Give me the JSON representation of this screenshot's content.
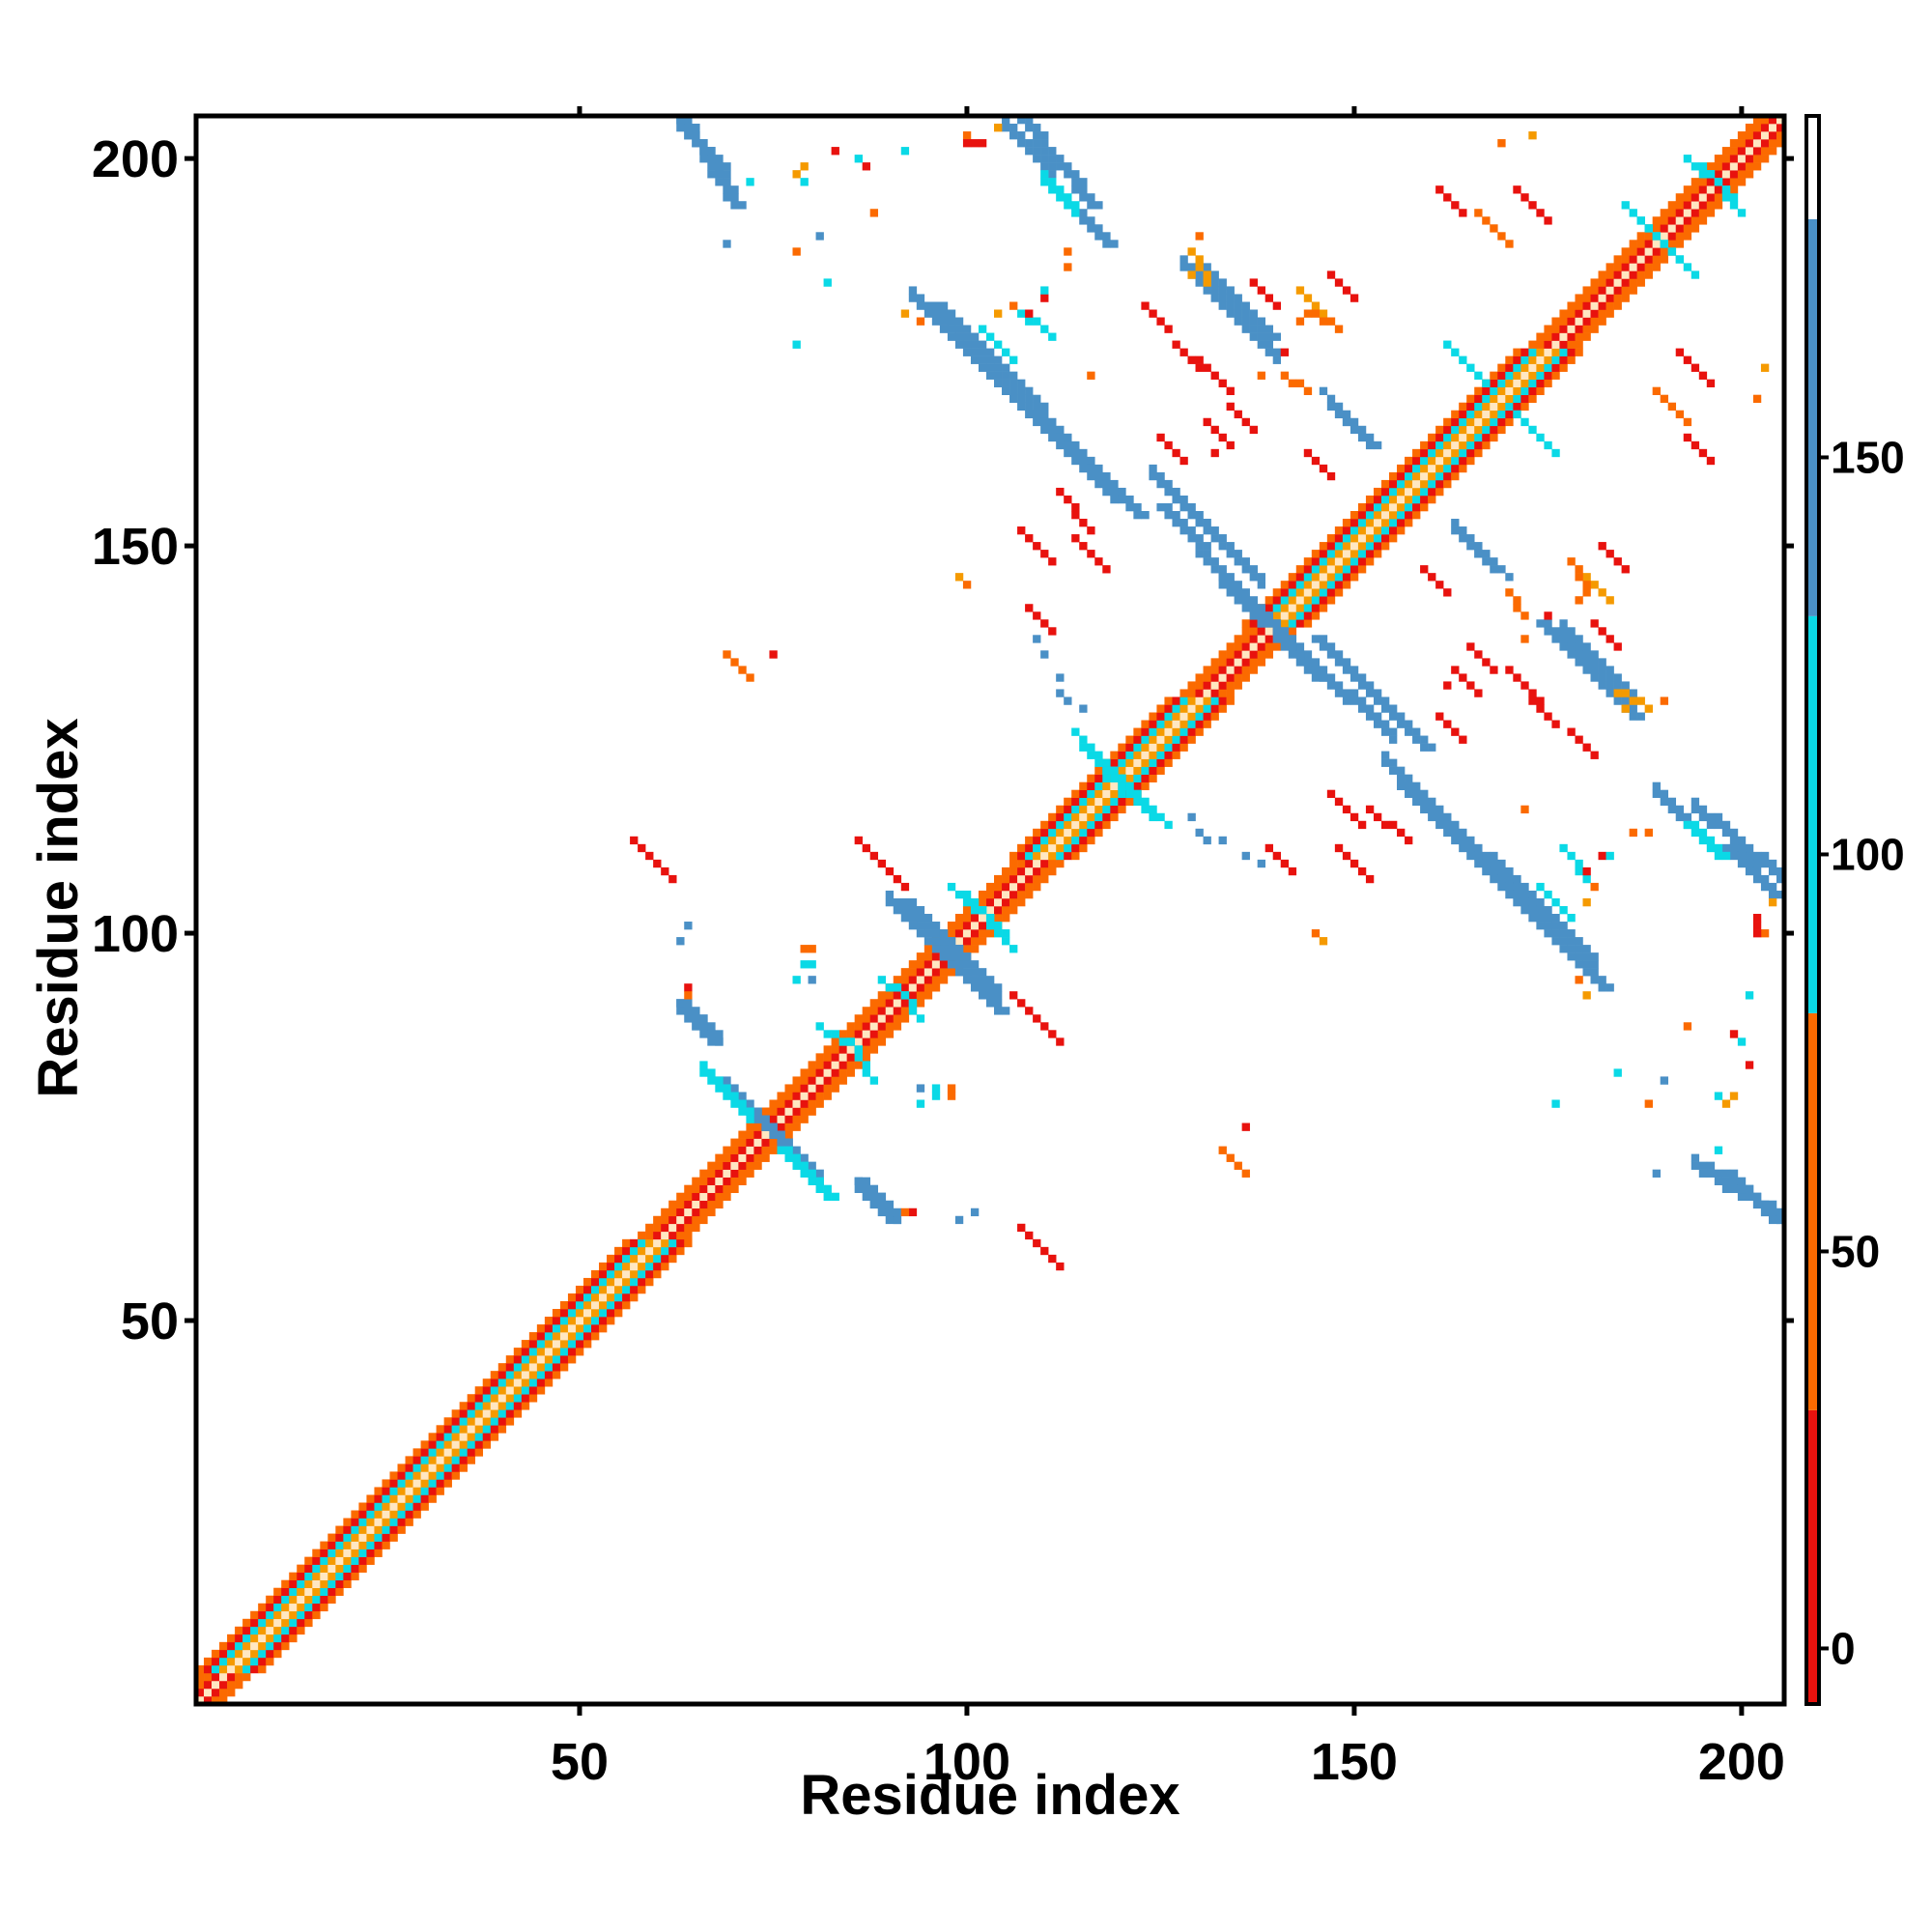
{
  "chart_data": {
    "type": "heatmap",
    "title": "",
    "xlabel": "Residue index",
    "ylabel": "Residue index",
    "xlim": [
      1,
      205
    ],
    "ylim": [
      1,
      205
    ],
    "x_ticks": [
      50,
      100,
      150,
      200
    ],
    "y_ticks": [
      50,
      100,
      150,
      200
    ],
    "grid": false,
    "legend": "colorbar-right",
    "colorbar": {
      "range": [
        -7,
        193
      ],
      "ticks": [
        0,
        50,
        100,
        150
      ],
      "bands": [
        {
          "from": -7,
          "to": 30,
          "color": "#e8120e"
        },
        {
          "from": 30,
          "to": 80,
          "color": "#fb6a00"
        },
        {
          "from": 80,
          "to": 130,
          "color": "#0ad9e6"
        },
        {
          "from": 130,
          "to": 180,
          "color": "#4a90c6"
        },
        {
          "from": 180,
          "to": 193,
          "color": "#ffffff"
        }
      ]
    },
    "diagonal_band": {
      "range": [
        1,
        205
      ],
      "colors_by_offset": {
        "0": "#ffe7c2",
        "1": "#e8120e",
        "2": "#fb6a00",
        "3": "#fb6a00",
        "4": "#f59a00"
      },
      "helix_segments": [
        [
          5,
          50
        ],
        [
          50,
          60
        ],
        [
          110,
          130
        ],
        [
          140,
          175
        ]
      ],
      "helix_colors": {
        "1": "#f59a00",
        "2": "#0ad9e6",
        "3": "#e8120e",
        "4": "#fb6a00"
      }
    },
    "contact_segments": [
      {
        "x1": 63,
        "y1": 205,
        "x2": 70,
        "y2": 194,
        "width": 2,
        "color": "#4a90c6"
      },
      {
        "x1": 107,
        "y1": 205,
        "x2": 116,
        "y2": 194,
        "width": 2,
        "color": "#4a90c6"
      },
      {
        "x1": 96,
        "y1": 181,
        "x2": 122,
        "y2": 154,
        "width": 2,
        "color": "#4a90c6"
      },
      {
        "x1": 125,
        "y1": 155,
        "x2": 145,
        "y2": 133,
        "width": 2,
        "color": "#4a90c6"
      },
      {
        "x1": 145,
        "y1": 138,
        "x2": 159,
        "y2": 124,
        "width": 2,
        "color": "#4a90c6"
      },
      {
        "x1": 156,
        "y1": 119,
        "x2": 182,
        "y2": 93,
        "width": 2,
        "color": "#4a90c6"
      },
      {
        "x1": 130,
        "y1": 186,
        "x2": 139,
        "y2": 177,
        "width": 2,
        "color": "#4a90c6"
      },
      {
        "x1": 174,
        "y1": 140,
        "x2": 186,
        "y2": 128,
        "width": 2,
        "color": "#4a90c6"
      },
      {
        "x1": 147,
        "y1": 168,
        "x2": 153,
        "y2": 163,
        "width": 1,
        "color": "#4a90c6"
      },
      {
        "x1": 163,
        "y1": 152,
        "x2": 170,
        "y2": 146,
        "width": 1,
        "color": "#4a90c6"
      },
      {
        "x1": 198,
        "y1": 111,
        "x2": 204,
        "y2": 105,
        "width": 2,
        "color": "#4a90c6"
      },
      {
        "x1": 198,
        "y1": 69,
        "x2": 204,
        "y2": 63,
        "width": 2,
        "color": "#4a90c6"
      },
      {
        "x1": 68,
        "y1": 81,
        "x2": 76,
        "y2": 73,
        "width": 2,
        "color": "#4a90c6"
      },
      {
        "x1": 76,
        "y1": 72,
        "x2": 82,
        "y2": 66,
        "width": 2,
        "color": "#0ad9e6"
      },
      {
        "x1": 86,
        "y1": 68,
        "x2": 90,
        "y2": 63,
        "width": 2,
        "color": "#4a90c6"
      },
      {
        "x1": 92,
        "y1": 104,
        "x2": 99,
        "y2": 97,
        "width": 2,
        "color": "#4a90c6"
      },
      {
        "x1": 97,
        "y1": 97,
        "x2": 104,
        "y2": 90,
        "width": 2,
        "color": "#4a90c6"
      },
      {
        "x1": 63,
        "y1": 91,
        "x2": 67,
        "y2": 86,
        "width": 2,
        "color": "#4a90c6"
      },
      {
        "x1": 114,
        "y1": 193,
        "x2": 118,
        "y2": 189,
        "width": 2,
        "color": "#4a90c6"
      },
      {
        "x1": 193,
        "y1": 114,
        "x2": 197,
        "y2": 110,
        "width": 2,
        "color": "#0ad9e6"
      },
      {
        "x1": 98,
        "y1": 106,
        "x2": 105,
        "y2": 100,
        "width": 1,
        "color": "#0ad9e6"
      },
      {
        "x1": 102,
        "y1": 178,
        "x2": 106,
        "y2": 174,
        "width": 1,
        "color": "#0ad9e6"
      },
      {
        "x1": 119,
        "y1": 121,
        "x2": 126,
        "y2": 114,
        "width": 1,
        "color": "#0ad9e6"
      },
      {
        "x1": 187,
        "y1": 192,
        "x2": 194,
        "y2": 185,
        "width": 1,
        "color": "#0ad9e6"
      },
      {
        "x1": 195,
        "y1": 199,
        "x2": 200,
        "y2": 193,
        "width": 1,
        "color": "#0ad9e6"
      },
      {
        "x1": 115,
        "y1": 124,
        "x2": 121,
        "y2": 118,
        "width": 1,
        "color": "#0ad9e6"
      },
      {
        "x1": 85,
        "y1": 86,
        "x2": 88,
        "y2": 81,
        "width": 1,
        "color": "#0ad9e6"
      },
      {
        "x1": 91,
        "y1": 93,
        "x2": 94,
        "y2": 89,
        "width": 1,
        "color": "#0ad9e6"
      },
      {
        "x1": 177,
        "y1": 111,
        "x2": 180,
        "y2": 107,
        "width": 1,
        "color": "#0ad9e6"
      },
      {
        "x1": 171,
        "y1": 167,
        "x2": 176,
        "y2": 162,
        "width": 1,
        "color": "#0ad9e6"
      },
      {
        "x1": 86,
        "y1": 112,
        "x2": 92,
        "y2": 106,
        "width": 1,
        "color": "#e8120e"
      },
      {
        "x1": 107,
        "y1": 62,
        "x2": 112,
        "y2": 57,
        "width": 1,
        "color": "#e8120e"
      },
      {
        "x1": 114,
        "y1": 151,
        "x2": 118,
        "y2": 147,
        "width": 1,
        "color": "#e8120e"
      },
      {
        "x1": 108,
        "y1": 142,
        "x2": 111,
        "y2": 139,
        "width": 1,
        "color": "#e8120e"
      },
      {
        "x1": 147,
        "y1": 185,
        "x2": 150,
        "y2": 182,
        "width": 1,
        "color": "#e8120e"
      },
      {
        "x1": 171,
        "y1": 196,
        "x2": 175,
        "y2": 192,
        "width": 1,
        "color": "#e8120e"
      },
      {
        "x1": 193,
        "y1": 164,
        "x2": 196,
        "y2": 161,
        "width": 1,
        "color": "#e8120e"
      },
      {
        "x1": 170,
        "y1": 134,
        "x2": 174,
        "y2": 130,
        "width": 1,
        "color": "#e8120e"
      },
      {
        "x1": 148,
        "y1": 111,
        "x2": 152,
        "y2": 107,
        "width": 1,
        "color": "#e8120e"
      },
      {
        "x1": 152,
        "y1": 116,
        "x2": 157,
        "y2": 112,
        "width": 1,
        "color": "#e8120e"
      },
      {
        "x1": 161,
        "y1": 128,
        "x2": 164,
        "y2": 125,
        "width": 1,
        "color": "#e8120e"
      },
      {
        "x1": 159,
        "y1": 147,
        "x2": 162,
        "y2": 144,
        "width": 1,
        "color": "#e8120e"
      },
      {
        "x1": 131,
        "y1": 166,
        "x2": 134,
        "y2": 163,
        "width": 1,
        "color": "#e8120e"
      },
      {
        "x1": 166,
        "y1": 193,
        "x2": 170,
        "y2": 189,
        "width": 1,
        "color": "#fb6a00"
      },
      {
        "x1": 180,
        "y1": 146,
        "x2": 183,
        "y2": 143,
        "width": 1,
        "color": "#f59a00"
      },
      {
        "x1": 181,
        "y1": 140,
        "x2": 184,
        "y2": 137,
        "width": 1,
        "color": "#e8120e"
      },
      {
        "x1": 69,
        "y1": 136,
        "x2": 72,
        "y2": 133,
        "width": 1,
        "color": "#fb6a00"
      },
      {
        "x1": 144,
        "y1": 180,
        "x2": 148,
        "y2": 178,
        "width": 1,
        "color": "#fb6a00"
      },
      {
        "x1": 123,
        "y1": 181,
        "x2": 126,
        "y2": 178,
        "width": 1,
        "color": "#e8120e"
      },
      {
        "x1": 127,
        "y1": 176,
        "x2": 130,
        "y2": 173,
        "width": 1,
        "color": "#e8120e"
      },
      {
        "x1": 141,
        "y1": 172,
        "x2": 144,
        "y2": 170,
        "width": 1,
        "color": "#fb6a00"
      },
      {
        "x1": 165,
        "y1": 137,
        "x2": 168,
        "y2": 134,
        "width": 1,
        "color": "#e8120e"
      },
      {
        "x1": 184,
        "y1": 131,
        "x2": 188,
        "y2": 129,
        "width": 1,
        "color": "#f59a00"
      }
    ],
    "contact_dots": [
      {
        "x": 78,
        "y": 198,
        "color": "#f59a00"
      },
      {
        "x": 79,
        "y": 197,
        "color": "#0ad9e6"
      },
      {
        "x": 87,
        "y": 199,
        "color": "#e8120e"
      },
      {
        "x": 92,
        "y": 201,
        "color": "#0ad9e6"
      },
      {
        "x": 100,
        "y": 203,
        "color": "#fb6a00"
      },
      {
        "x": 101,
        "y": 202,
        "color": "#e8120e"
      },
      {
        "x": 104,
        "y": 204,
        "color": "#f59a00"
      },
      {
        "x": 82,
        "y": 184,
        "color": "#0ad9e6"
      },
      {
        "x": 69,
        "y": 189,
        "color": "#4a90c6"
      },
      {
        "x": 92,
        "y": 180,
        "color": "#f59a00"
      },
      {
        "x": 94,
        "y": 179,
        "color": "#fb6a00"
      },
      {
        "x": 110,
        "y": 182,
        "color": "#e8120e"
      },
      {
        "x": 108,
        "y": 180,
        "color": "#e8120e"
      },
      {
        "x": 130,
        "y": 190,
        "color": "#fb6a00"
      },
      {
        "x": 141,
        "y": 175,
        "color": "#e8120e"
      },
      {
        "x": 138,
        "y": 172,
        "color": "#fb6a00"
      },
      {
        "x": 132,
        "y": 162,
        "color": "#e8120e"
      },
      {
        "x": 116,
        "y": 172,
        "color": "#fb6a00"
      },
      {
        "x": 113,
        "y": 186,
        "color": "#fb6a00"
      },
      {
        "x": 173,
        "y": 203,
        "color": "#f59a00"
      },
      {
        "x": 202,
        "y": 169,
        "color": "#fb6a00"
      },
      {
        "x": 179,
        "y": 143,
        "color": "#fb6a00"
      },
      {
        "x": 75,
        "y": 136,
        "color": "#e8120e"
      },
      {
        "x": 112,
        "y": 131,
        "color": "#4a90c6"
      },
      {
        "x": 113,
        "y": 130,
        "color": "#4a90c6"
      },
      {
        "x": 115,
        "y": 129,
        "color": "#4a90c6"
      },
      {
        "x": 185,
        "y": 129,
        "color": "#f59a00"
      },
      {
        "x": 133,
        "y": 112,
        "color": "#4a90c6"
      },
      {
        "x": 136,
        "y": 110,
        "color": "#4a90c6"
      },
      {
        "x": 138,
        "y": 109,
        "color": "#4a90c6"
      },
      {
        "x": 188,
        "y": 113,
        "color": "#fb6a00"
      },
      {
        "x": 183,
        "y": 110,
        "color": "#0ad9e6"
      },
      {
        "x": 181,
        "y": 106,
        "color": "#fb6a00"
      },
      {
        "x": 180,
        "y": 104,
        "color": "#f59a00"
      },
      {
        "x": 202,
        "y": 102,
        "color": "#e8120e"
      },
      {
        "x": 202,
        "y": 100,
        "color": "#e8120e"
      },
      {
        "x": 190,
        "y": 81,
        "color": "#4a90c6"
      },
      {
        "x": 193,
        "y": 88,
        "color": "#fb6a00"
      },
      {
        "x": 200,
        "y": 86,
        "color": "#0ad9e6"
      },
      {
        "x": 201,
        "y": 83,
        "color": "#e8120e"
      },
      {
        "x": 199,
        "y": 79,
        "color": "#f59a00"
      },
      {
        "x": 197,
        "y": 72,
        "color": "#0ad9e6"
      },
      {
        "x": 176,
        "y": 78,
        "color": "#0ad9e6"
      },
      {
        "x": 145,
        "y": 100,
        "color": "#fb6a00"
      },
      {
        "x": 146,
        "y": 99,
        "color": "#f59a00"
      },
      {
        "x": 79,
        "y": 98,
        "color": "#fb6a00"
      },
      {
        "x": 79,
        "y": 96,
        "color": "#0ad9e6"
      },
      {
        "x": 78,
        "y": 94,
        "color": "#0ad9e6"
      },
      {
        "x": 64,
        "y": 93,
        "color": "#e8120e"
      },
      {
        "x": 63,
        "y": 99,
        "color": "#4a90c6"
      },
      {
        "x": 94,
        "y": 80,
        "color": "#4a90c6"
      },
      {
        "x": 96,
        "y": 80,
        "color": "#0ad9e6"
      },
      {
        "x": 98,
        "y": 80,
        "color": "#fb6a00"
      },
      {
        "x": 101,
        "y": 64,
        "color": "#4a90c6"
      },
      {
        "x": 92,
        "y": 64,
        "color": "#fb6a00"
      },
      {
        "x": 188,
        "y": 78,
        "color": "#fb6a00"
      }
    ]
  }
}
